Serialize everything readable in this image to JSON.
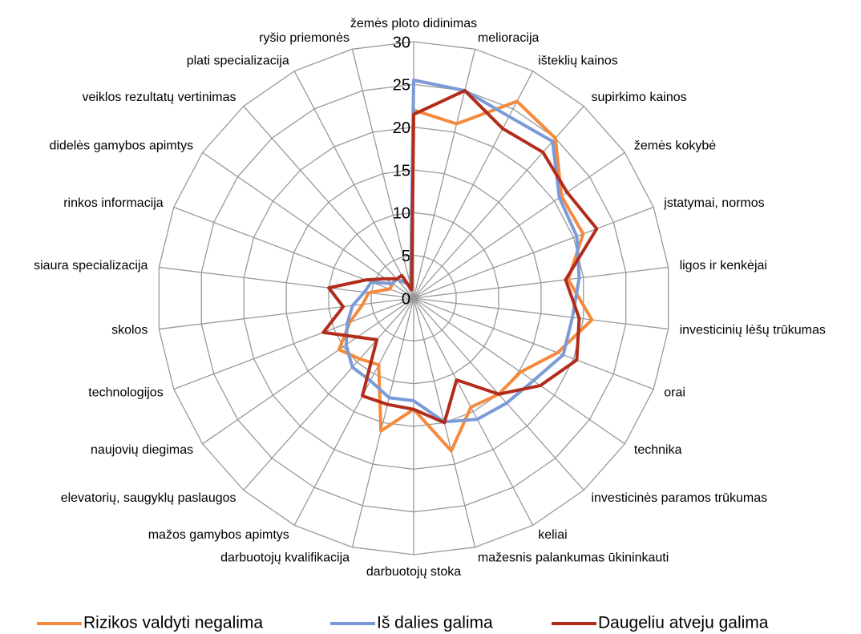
{
  "chart_data": {
    "type": "radar",
    "categories": [
      "žemės ploto didinimas",
      "melioracija",
      "išteklių kainos",
      "supirkimo kainos",
      "žemės kokybė",
      "įstatymai, normos",
      "ligos ir kenkėjai",
      "investicinių lėšų trūkumas",
      "orai",
      "technika",
      "investicinės paramos trūkumas",
      "keliai",
      "mažesnis palankumas ūkininkauti",
      "darbuotojų stoka",
      "darbuotojų kvalifikacija",
      "mažos gamybos apimtys",
      "elevatorių, saugyklų paslaugos",
      "naujovių diegimas",
      "technologijos",
      "skolos",
      "siaura specializacija",
      "rinkos informacija",
      "didelės gamybos apimtys",
      "veiklos rezultatų vertinimas",
      "plati specializacija",
      "ryšio priemonės"
    ],
    "series": [
      {
        "name": "Rizikos valdyti negalima",
        "color": "#f58a3c",
        "values": [
          22,
          21,
          26,
          25,
          21,
          21.2,
          18.2,
          21,
          18,
          15.2,
          15,
          14.4,
          18.4,
          13,
          16,
          8.8,
          9.5,
          10.6,
          8,
          6,
          5.3,
          3,
          3,
          3,
          2,
          1.5
        ]
      },
      {
        "name": "Iš dalies galima",
        "color": "#7b9bd8",
        "values": [
          25.5,
          25,
          24,
          24.5,
          20.7,
          20.4,
          19.5,
          18.7,
          18.7,
          17,
          16.4,
          16,
          14.9,
          12,
          12,
          10.9,
          10.8,
          9.6,
          8.3,
          7.2,
          5.8,
          5.3,
          3,
          3,
          2,
          1.5
        ]
      },
      {
        "name": "Daugeliu atveju galima",
        "color": "#b22c1c",
        "values": [
          21.5,
          25,
          22.4,
          22.8,
          21.8,
          22.9,
          17.9,
          19.5,
          20.4,
          18,
          15,
          10.8,
          15,
          13,
          12.8,
          12.9,
          6.5,
          8,
          11.3,
          8.3,
          10,
          6,
          4,
          3,
          3,
          1
        ]
      }
    ],
    "ylim": [
      0,
      30
    ],
    "yticks": [
      0,
      5,
      10,
      15,
      20,
      25,
      30
    ],
    "grid": true,
    "legend": "bottom"
  }
}
